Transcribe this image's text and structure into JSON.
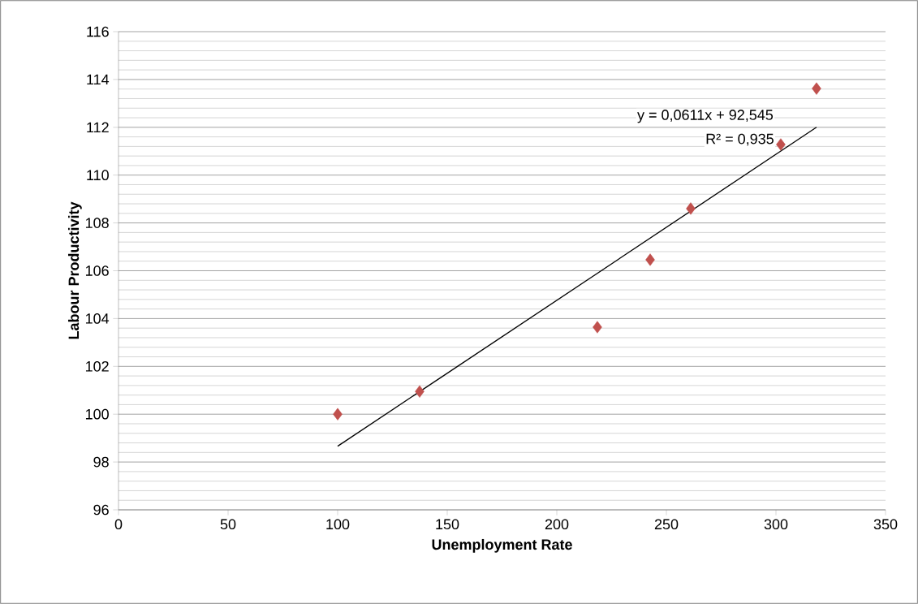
{
  "chart_data": {
    "type": "scatter",
    "xlabel": "Unemployment Rate",
    "ylabel": "Labour Productivity",
    "series": [
      {
        "color": "#c0504d",
        "marker": "diamond",
        "x": [
          100,
          137.4,
          218.5,
          242.6,
          261.1,
          302.2,
          318.5
        ],
        "values": [
          100.0,
          100.95,
          103.64,
          106.46,
          108.6,
          111.28,
          113.62
        ]
      },
      {
        "type": "line",
        "color": "#000000",
        "x": [
          100,
          318.5
        ],
        "values": [
          98.66,
          112.0
        ]
      }
    ],
    "annotations": [
      "y = 0,0611x + 92,545",
      "R² = 0,935"
    ],
    "xlim": [
      0,
      350
    ],
    "ylim": [
      96,
      116
    ],
    "xticks": [
      0,
      50,
      100,
      150,
      200,
      250,
      300,
      350
    ],
    "yticks": [
      96,
      98,
      100,
      102,
      104,
      106,
      108,
      110,
      112,
      114,
      116
    ],
    "grid": "y"
  }
}
